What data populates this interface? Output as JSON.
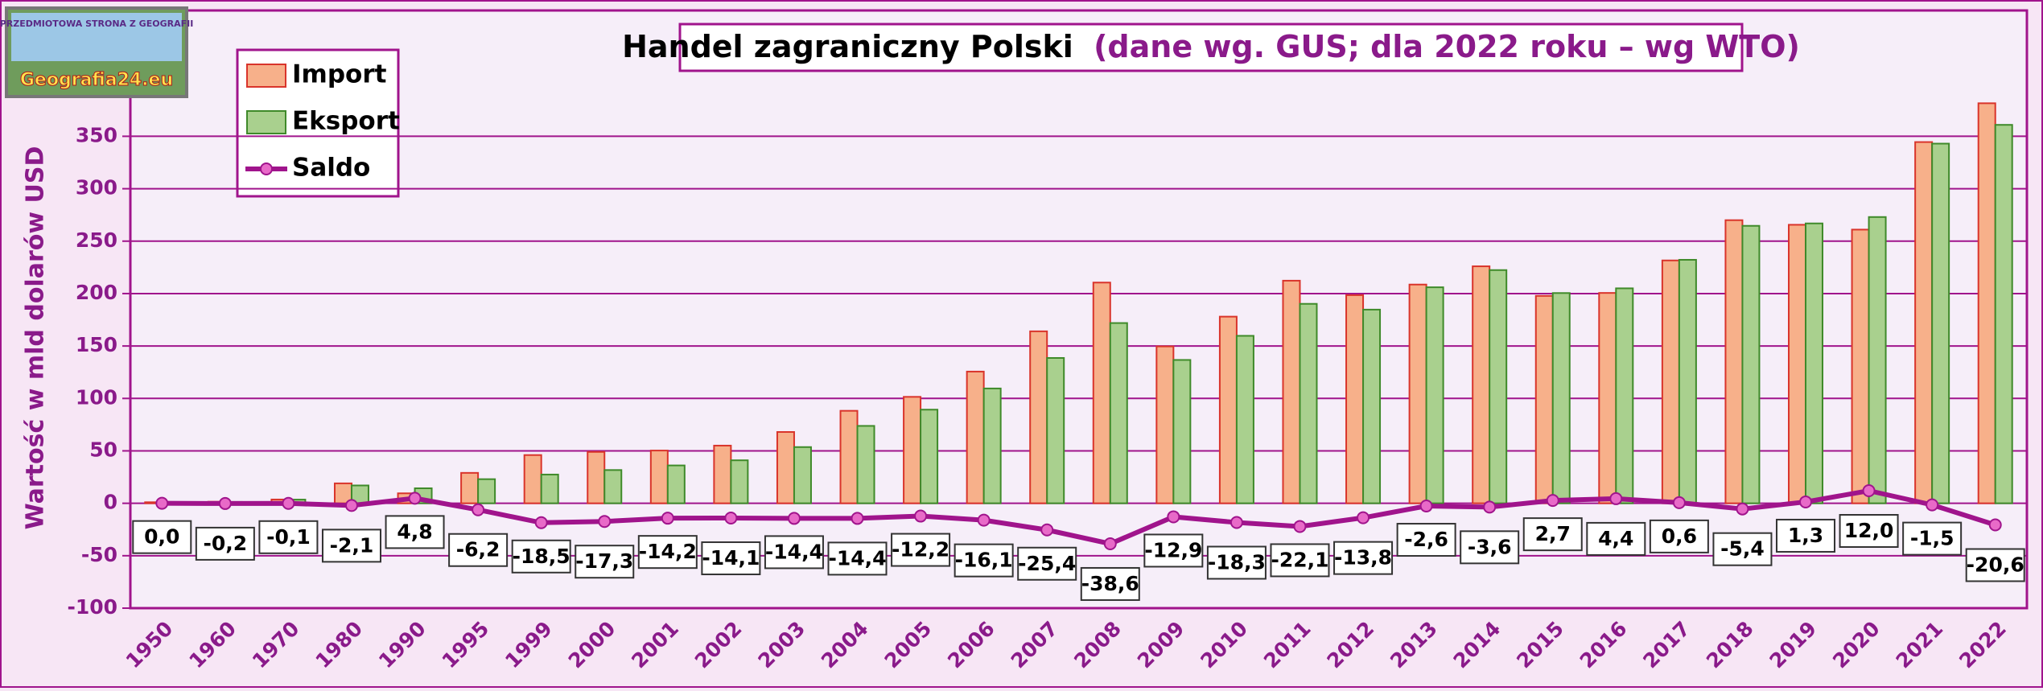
{
  "logo": {
    "text": "Geografia24.eu",
    "caption": "PRZEDMIOTOWA STRONA Z GEOGRAFII"
  },
  "chart_data": {
    "type": "bar",
    "title": "Handel zagraniczny Polski",
    "subtitle": "(dane wg. GUS; dla 2022 roku – wg WTO)",
    "y_label": "Wartość w mld dolarów USD",
    "categories": [
      "1950",
      "1960",
      "1970",
      "1980",
      "1990",
      "1995",
      "1999",
      "2000",
      "2001",
      "2002",
      "2003",
      "2004",
      "2005",
      "2006",
      "2007",
      "2008",
      "2009",
      "2010",
      "2011",
      "2012",
      "2013",
      "2014",
      "2015",
      "2016",
      "2017",
      "2018",
      "2019",
      "2020",
      "2021",
      "2022"
    ],
    "series": [
      {
        "name": "Import",
        "type": "bar",
        "color": "#f7b08a",
        "stroke": "#d9342b",
        "values": [
          1,
          1.5,
          3.6,
          19,
          9.5,
          29,
          46,
          49,
          50.3,
          55,
          68,
          88.2,
          101.5,
          125.6,
          164,
          210.5,
          149.6,
          178,
          212.3,
          198.5,
          208.6,
          226,
          197.8,
          200.6,
          231.6,
          270,
          265.6,
          261,
          344.5,
          381.5
        ]
      },
      {
        "name": "Eksport",
        "type": "bar",
        "color": "#a9d08e",
        "stroke": "#3f8a2a",
        "values": [
          1,
          1.3,
          3.5,
          17,
          14.3,
          23,
          27.4,
          31.7,
          36.1,
          41,
          53.6,
          73.8,
          89.3,
          109.5,
          138.6,
          171.9,
          136.7,
          159.7,
          190.2,
          184.7,
          206,
          222.4,
          200.5,
          205,
          232.2,
          264.6,
          266.9,
          273,
          343,
          360.9
        ]
      },
      {
        "name": "Saldo",
        "type": "line",
        "color": "#a0148c",
        "marker_color": "#e86ac8",
        "values": [
          0,
          -0.2,
          -0.1,
          -2.1,
          4.8,
          -6.2,
          -18.5,
          -17.3,
          -14.2,
          -14.1,
          -14.4,
          -14.4,
          -12.2,
          -16.1,
          -25.4,
          -38.6,
          -12.9,
          -18.3,
          -22.1,
          -13.8,
          -2.6,
          -3.6,
          2.7,
          4.4,
          0.6,
          -5.4,
          1.3,
          12.0,
          -1.5,
          -20.6
        ],
        "value_labels": [
          "0,0",
          "-0,2",
          "-0,1",
          "-2,1",
          "4,8",
          "-6,2",
          "-18,5",
          "-17,3",
          "-14,2",
          "-14,1",
          "-14,4",
          "-14,4",
          "-12,2",
          "-16,1",
          "-25,4",
          "-38,6",
          "-12,9",
          "-18,3",
          "-22,1",
          "-13,8",
          "-2,6",
          "-3,6",
          "2,7",
          "4,4",
          "0,6",
          "-5,4",
          "1,3",
          "12,0",
          "-1,5",
          "-20,6"
        ]
      }
    ],
    "ylim": [
      -100,
      470
    ],
    "yticks": [
      -100,
      -50,
      0,
      50,
      100,
      150,
      200,
      250,
      300,
      350
    ],
    "grid": true,
    "legend": "top-left"
  }
}
